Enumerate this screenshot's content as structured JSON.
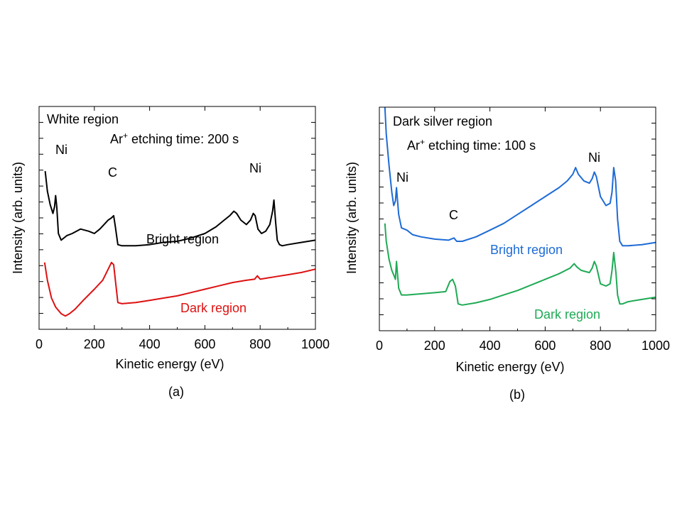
{
  "chart_data": [
    {
      "type": "line",
      "panel_label": "(a)",
      "xlabel": "Kinetic energy (eV)",
      "ylabel": "Intensity (arb. units)",
      "xlim": [
        0,
        1000
      ],
      "xticks": [
        0,
        200,
        400,
        600,
        800,
        1000
      ],
      "xtick_labels": [
        "0",
        "200",
        "400",
        "600",
        "800",
        "1000"
      ],
      "ylim": [
        0,
        100
      ],
      "y_ticks_unlabeled": true,
      "grid": false,
      "annotations": {
        "region_title": "White region",
        "etching_prefix": "Ar",
        "etching_sup": "+",
        "etching_suffix": " etching time: 200 s",
        "peak_ni_low": "Ni",
        "peak_c": "C",
        "peak_ni_high": "Ni"
      },
      "series": [
        {
          "name": "Bright region",
          "color": "#000000",
          "x": [
            22,
            30,
            40,
            50,
            56,
            60,
            64,
            70,
            80,
            100,
            120,
            150,
            180,
            200,
            220,
            235,
            250,
            262,
            270,
            276,
            285,
            300,
            350,
            400,
            450,
            500,
            550,
            600,
            640,
            670,
            690,
            705,
            715,
            730,
            750,
            765,
            775,
            782,
            792,
            805,
            820,
            835,
            845,
            850,
            856,
            862,
            870,
            880,
            900,
            950,
            1000
          ],
          "y": [
            71,
            62,
            56,
            52,
            55,
            60,
            55,
            43,
            40,
            42,
            43,
            45,
            44,
            43,
            45,
            47,
            49,
            50,
            51,
            46,
            38,
            37.5,
            37.5,
            38,
            39,
            39.5,
            41,
            43,
            46,
            49,
            51,
            53,
            52,
            49,
            47,
            49,
            52,
            51,
            45,
            43,
            44,
            47,
            53,
            58,
            48,
            40,
            38,
            37.5,
            38,
            39,
            40
          ]
        },
        {
          "name": "Dark region",
          "color": "#dd1111",
          "x": [
            20,
            30,
            45,
            60,
            80,
            95,
            110,
            130,
            160,
            200,
            230,
            250,
            262,
            270,
            276,
            285,
            300,
            350,
            400,
            450,
            500,
            550,
            600,
            650,
            700,
            750,
            780,
            790,
            800,
            850,
            900,
            950,
            1000
          ],
          "y": [
            30,
            22,
            14,
            10,
            7,
            6,
            7,
            9,
            13,
            18,
            22,
            27,
            30,
            29,
            22,
            12,
            11.5,
            12,
            13,
            14,
            15,
            16.5,
            18,
            19.5,
            21,
            22,
            22.5,
            24,
            22.5,
            23.5,
            24.5,
            25.5,
            27
          ]
        }
      ],
      "series_labels": {
        "bright": "Bright region",
        "dark": "Dark region"
      }
    },
    {
      "type": "line",
      "panel_label": "(b)",
      "xlabel": "Kinetic energy (eV)",
      "ylabel": "Intensity (arb. units)",
      "xlim": [
        0,
        1000
      ],
      "xticks": [
        0,
        200,
        400,
        600,
        800,
        1000
      ],
      "xtick_labels": [
        "0",
        "200",
        "400",
        "600",
        "800",
        "1000"
      ],
      "ylim": [
        0,
        100
      ],
      "y_ticks_unlabeled": true,
      "grid": false,
      "annotations": {
        "region_title": "Dark silver region",
        "etching_prefix": "Ar",
        "etching_sup": "+",
        "etching_suffix": " etching time: 100 s",
        "peak_ni_low": "Ni",
        "peak_c": "C",
        "peak_ni_high": "Ni"
      },
      "series": [
        {
          "name": "Bright region",
          "color": "#1e6bd6",
          "x": [
            20,
            25,
            35,
            45,
            52,
            58,
            62,
            70,
            80,
            100,
            120,
            150,
            200,
            250,
            270,
            280,
            300,
            350,
            400,
            450,
            500,
            550,
            600,
            650,
            680,
            700,
            710,
            720,
            740,
            760,
            770,
            778,
            785,
            800,
            820,
            835,
            842,
            848,
            855,
            862,
            870,
            880,
            900,
            950,
            1000
          ],
          "y": [
            100,
            88,
            74,
            62,
            56,
            58,
            64,
            52,
            46,
            45,
            43,
            42,
            41,
            40.5,
            41.5,
            40,
            40,
            42,
            45,
            48,
            52,
            56,
            60,
            64,
            67,
            70,
            73,
            70,
            67,
            66,
            68,
            71,
            69,
            60,
            56,
            57,
            62,
            73,
            67,
            50,
            40,
            38,
            38,
            38.5,
            39.5
          ]
        },
        {
          "name": "Dark region",
          "color": "#1faa55",
          "x": [
            20,
            25,
            35,
            45,
            52,
            58,
            62,
            70,
            80,
            100,
            150,
            200,
            240,
            255,
            265,
            275,
            285,
            300,
            350,
            400,
            450,
            500,
            550,
            600,
            650,
            690,
            705,
            715,
            730,
            760,
            770,
            778,
            785,
            800,
            820,
            835,
            842,
            848,
            856,
            862,
            870,
            880,
            900,
            950,
            1000
          ],
          "y": [
            48,
            40,
            32,
            27,
            25,
            23,
            31,
            19,
            16,
            16,
            16.5,
            17,
            17.5,
            22,
            23,
            20,
            12,
            11.5,
            12.5,
            14,
            16,
            18,
            20.5,
            23,
            25.5,
            28,
            30,
            28.5,
            27,
            26,
            28,
            31,
            29,
            21,
            20,
            21,
            27,
            35,
            26,
            16,
            12,
            12,
            13,
            14,
            15
          ]
        }
      ],
      "series_labels": {
        "bright": "Bright region",
        "dark": "Dark region"
      }
    }
  ]
}
